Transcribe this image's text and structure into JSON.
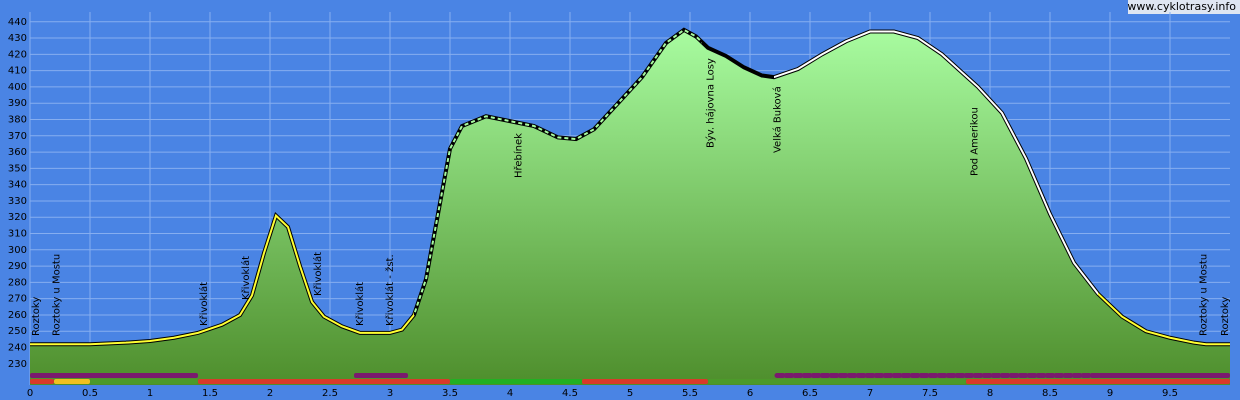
{
  "chart_data": {
    "type": "area",
    "watermark": "www.cyklotrasy.info",
    "x": [
      0,
      0.5,
      0.8,
      1.0,
      1.2,
      1.4,
      1.6,
      1.75,
      1.85,
      1.95,
      2.05,
      2.15,
      2.25,
      2.35,
      2.45,
      2.6,
      2.75,
      3.0,
      3.1,
      3.2,
      3.3,
      3.4,
      3.5,
      3.6,
      3.8,
      4.0,
      4.2,
      4.4,
      4.55,
      4.7,
      4.9,
      5.1,
      5.3,
      5.45,
      5.55,
      5.65,
      5.8,
      5.95,
      6.1,
      6.2,
      6.4,
      6.6,
      6.8,
      7.0,
      7.2,
      7.4,
      7.6,
      7.9,
      8.1,
      8.3,
      8.5,
      8.7,
      8.9,
      9.1,
      9.3,
      9.5,
      9.7,
      9.8,
      10
    ],
    "values": [
      242,
      242,
      243,
      244,
      246,
      249,
      254,
      260,
      272,
      298,
      321,
      314,
      290,
      268,
      259,
      253,
      249,
      249,
      251,
      260,
      282,
      322,
      362,
      376,
      382,
      379,
      376,
      369,
      368,
      374,
      390,
      406,
      427,
      435,
      431,
      424,
      419,
      412,
      407,
      406,
      411,
      420,
      428,
      434,
      434,
      430,
      420,
      400,
      384,
      356,
      322,
      292,
      273,
      259,
      250,
      246,
      243,
      242,
      242
    ],
    "xlim": [
      0,
      10
    ],
    "ylim": [
      217,
      446
    ],
    "xticks": [
      0,
      0.5,
      1,
      1.5,
      2,
      2.5,
      3,
      3.5,
      4,
      4.5,
      5,
      5.5,
      6,
      6.5,
      7,
      7.5,
      8,
      8.5,
      9,
      9.5
    ],
    "yticks": [
      230,
      240,
      250,
      260,
      270,
      280,
      290,
      300,
      310,
      320,
      330,
      340,
      350,
      360,
      370,
      380,
      390,
      400,
      410,
      420,
      430,
      440
    ],
    "grid": true,
    "outline_segments": [
      {
        "start": 0,
        "end": 3.2,
        "color": "#ffff33"
      },
      {
        "start": 3.2,
        "end": 5.6,
        "color": "dashed"
      },
      {
        "start": 5.6,
        "end": 6.2,
        "color": "#000000"
      },
      {
        "start": 6.2,
        "end": 8.9,
        "color": "#ffffff"
      },
      {
        "start": 8.9,
        "end": 10,
        "color": "#ffff33"
      }
    ],
    "strips_top": [
      {
        "start": 0,
        "end": 1.4,
        "color": "#7a1a6e"
      },
      {
        "start": 2.7,
        "end": 3.15,
        "color": "#7a1a6e"
      },
      {
        "start": 6.2,
        "end": 8.9,
        "color": "dotted"
      },
      {
        "start": 8.9,
        "end": 10,
        "color": "#7a1a6e"
      }
    ],
    "strips_bottom": [
      {
        "start": 0,
        "end": 0.2,
        "color": "#d83a2a"
      },
      {
        "start": 0.2,
        "end": 0.5,
        "color": "#f0c020"
      },
      {
        "start": 0.5,
        "end": 1.4,
        "color": "#4c9a2a"
      },
      {
        "start": 1.4,
        "end": 3.5,
        "color": "#d83a2a"
      },
      {
        "start": 3.5,
        "end": 4.6,
        "color": "#22b022"
      },
      {
        "start": 4.6,
        "end": 5.65,
        "color": "#d83a2a"
      },
      {
        "start": 5.65,
        "end": 7.8,
        "color": "#4c9a2a"
      },
      {
        "start": 7.8,
        "end": 10,
        "color": "#d83a2a"
      }
    ],
    "waypoints": [
      {
        "x": 0.05,
        "label": "Roztoky"
      },
      {
        "x": 0.22,
        "label": "Roztoky u Mostu"
      },
      {
        "x": 1.45,
        "label": "Křivoklát"
      },
      {
        "x": 1.8,
        "label": "Křivoklát"
      },
      {
        "x": 2.4,
        "label": "Křivoklát"
      },
      {
        "x": 2.75,
        "label": "Křivoklát"
      },
      {
        "x": 3.0,
        "label": "Křivoklát - žst."
      },
      {
        "x": 4.07,
        "label": "Hřebínek"
      },
      {
        "x": 5.67,
        "label": "Býv. hájovna Losy"
      },
      {
        "x": 6.23,
        "label": "Velká Buková"
      },
      {
        "x": 7.87,
        "label": "Pod Amerikou"
      },
      {
        "x": 9.78,
        "label": "Roztoky u Mostu"
      },
      {
        "x": 9.96,
        "label": "Roztoky"
      }
    ]
  }
}
